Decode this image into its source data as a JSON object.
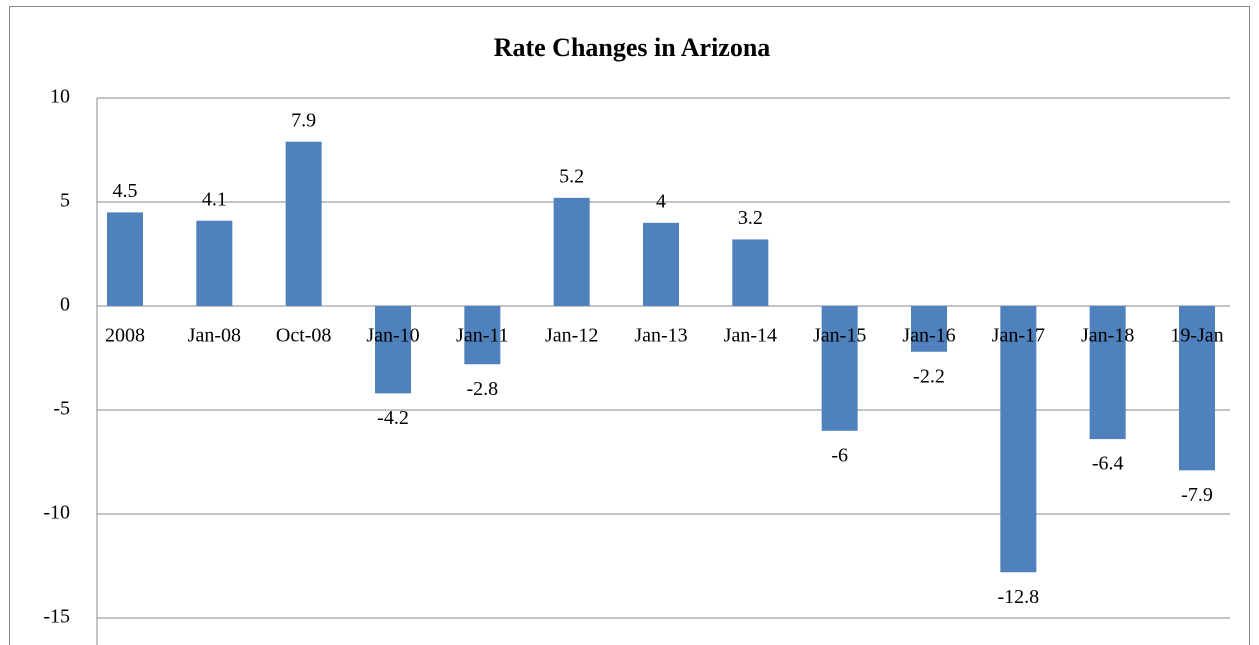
{
  "chart_data": {
    "type": "bar",
    "title": "Rate Changes in Arizona",
    "categories": [
      "2008",
      "Jan-08",
      "Oct-08",
      "Jan-10",
      "Jan-11",
      "Jan-12",
      "Jan-13",
      "Jan-14",
      "Jan-15",
      "Jan-16",
      "Jan-17",
      "Jan-18",
      "19-Jan"
    ],
    "values": [
      4.5,
      4.1,
      7.9,
      -4.2,
      -2.8,
      5.2,
      4,
      3.2,
      -6,
      -2.2,
      -12.8,
      -6.4,
      -7.9
    ],
    "color": "#4f81bd",
    "ylim": [
      -15,
      10
    ],
    "yticks": [
      -15,
      -10,
      -5,
      0,
      5,
      10
    ],
    "grid": true
  }
}
